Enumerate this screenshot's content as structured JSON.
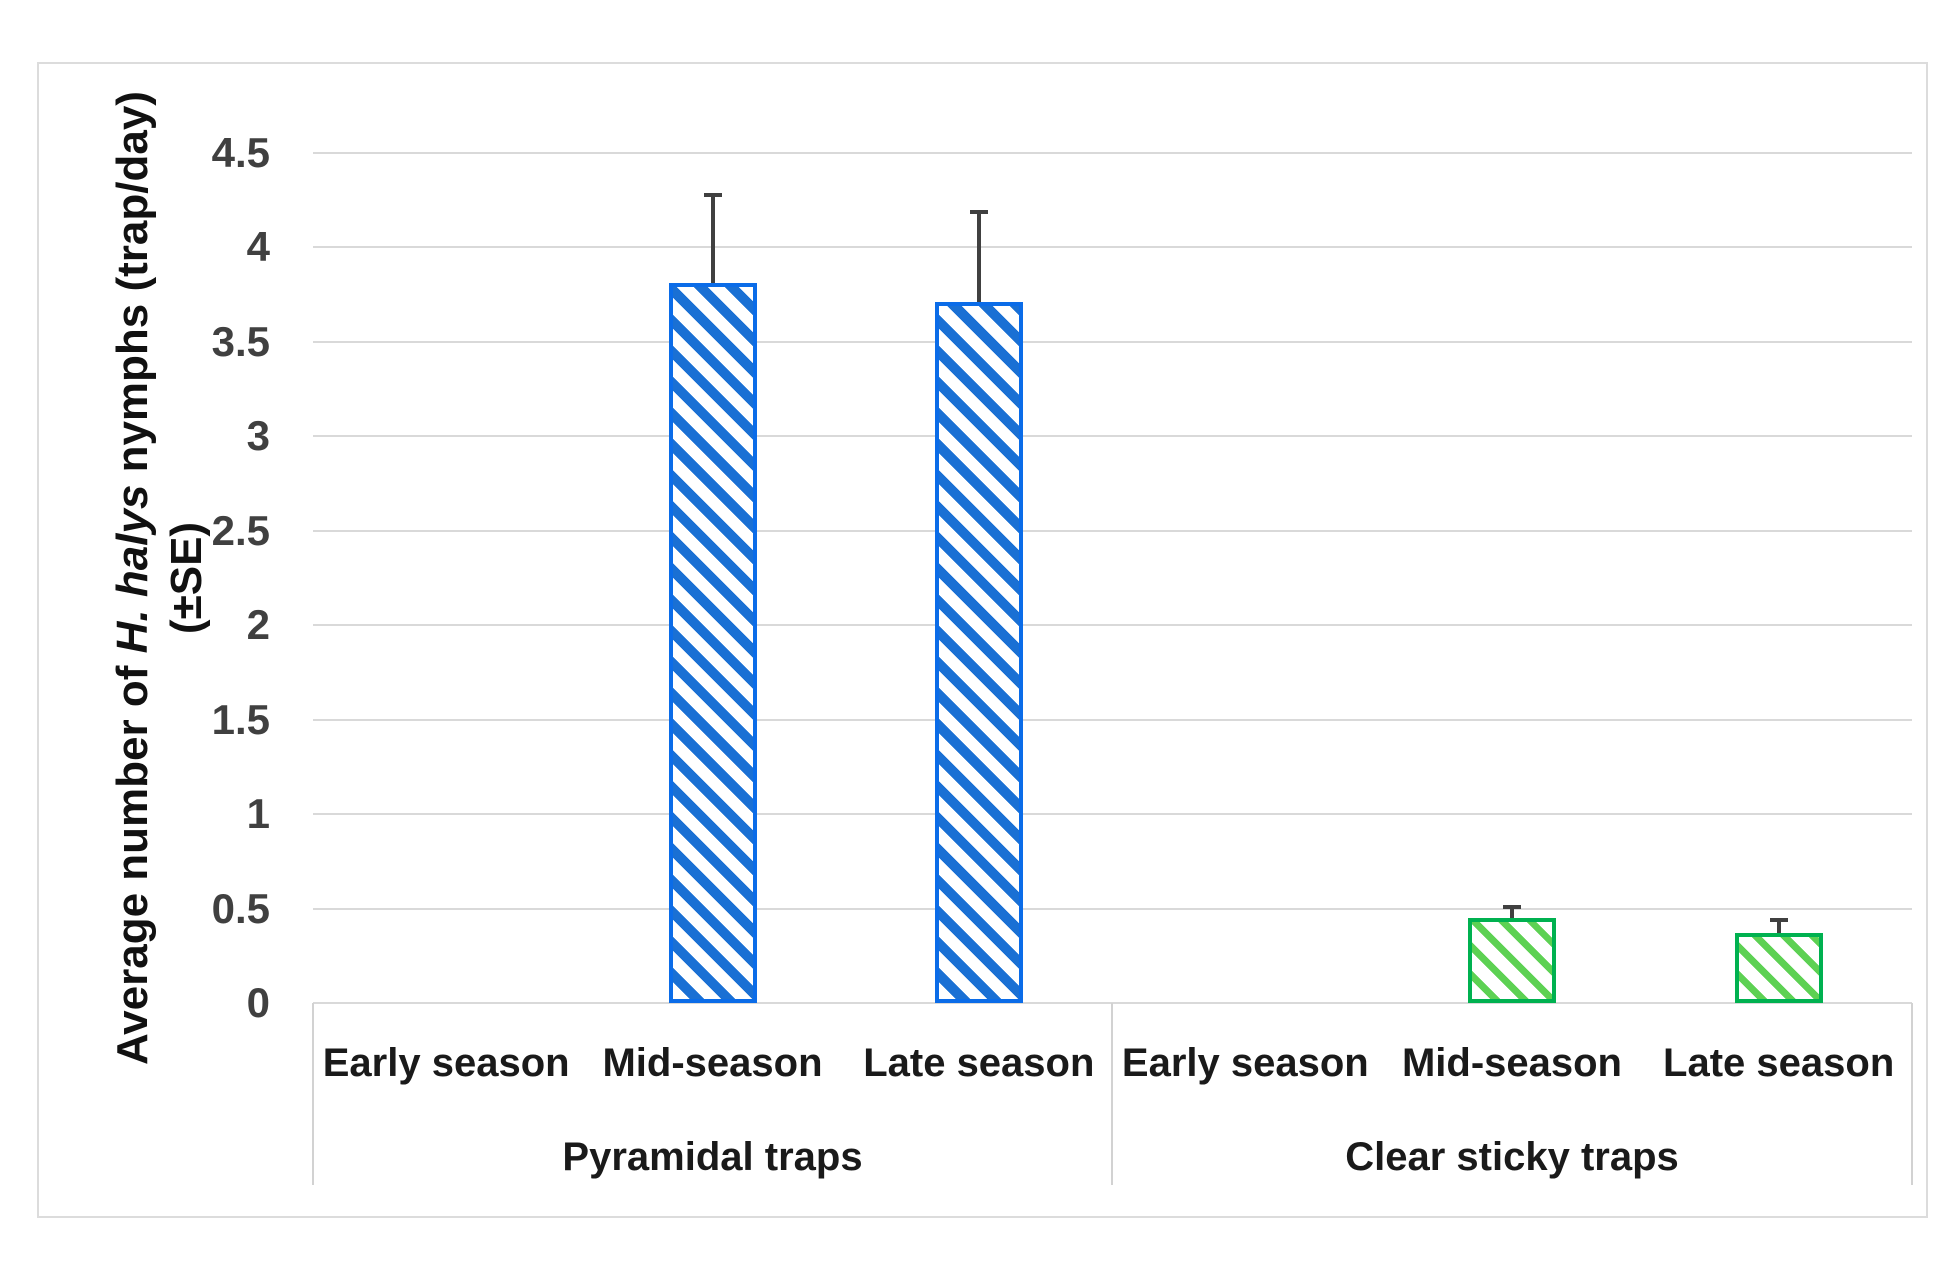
{
  "figure": {
    "background": "#ffffff",
    "border_color": "#dcdcdc"
  },
  "y_axis": {
    "title_prefix": "Average number of ",
    "title_species": "H. halys",
    "title_suffix": " nymphs (trap/day)",
    "title_line2": "(±SE)",
    "tick_labels": [
      "4.5",
      "4",
      "3.5",
      "3",
      "2.5",
      "2",
      "1.5",
      "1",
      "0.5",
      "0"
    ],
    "tick_color": "#404040"
  },
  "chart_data": {
    "type": "bar",
    "title": "",
    "xlabel": "",
    "ylabel": "Average number of H. halys nymphs (trap/day) (±SE)",
    "ylim": [
      0,
      4.5
    ],
    "ytick_step": 0.5,
    "grid": true,
    "legend": "none",
    "error_bar_color": "#404040",
    "gridline_color": "#d9d9d9",
    "groups": [
      {
        "label": "Pyramidal traps",
        "categories": [
          "Early season",
          "Mid-season",
          "Late season"
        ],
        "values": [
          0,
          3.81,
          3.71
        ],
        "errors_plus": [
          0,
          0.47,
          0.48
        ],
        "bar_border_color": "#0b6ce8",
        "stripe_color": "#1a70d4",
        "hatch": "diagonal-down"
      },
      {
        "label": "Clear sticky traps",
        "categories": [
          "Early season",
          "Mid-season",
          "Late season"
        ],
        "values": [
          0,
          0.45,
          0.37
        ],
        "errors_plus": [
          0,
          0.06,
          0.07
        ],
        "bar_border_color": "#00b150",
        "stripe_color": "#5dd153",
        "hatch": "diagonal-down"
      }
    ]
  }
}
